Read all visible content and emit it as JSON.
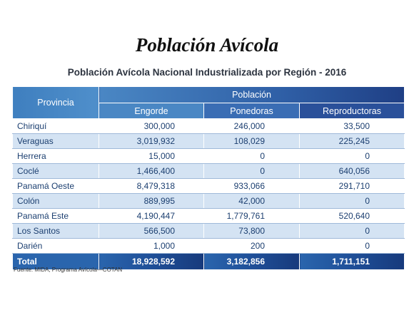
{
  "title": "Población Avícola",
  "subtitle": "Población Avícola Nacional Industrializada por Región - 2016",
  "table": {
    "header_provincia": "Provincia",
    "header_poblacion": "Población",
    "columns": [
      "Engorde",
      "Ponedoras",
      "Reproductoras"
    ],
    "rows": [
      {
        "provincia": "Chiriquí",
        "engorde": "300,000",
        "ponedoras": "246,000",
        "reproductoras": "33,500"
      },
      {
        "provincia": "Veraguas",
        "engorde": "3,019,932",
        "ponedoras": "108,029",
        "reproductoras": "225,245"
      },
      {
        "provincia": "Herrera",
        "engorde": "15,000",
        "ponedoras": "0",
        "reproductoras": "0"
      },
      {
        "provincia": "Coclé",
        "engorde": "1,466,400",
        "ponedoras": "0",
        "reproductoras": "640,056"
      },
      {
        "provincia": "Panamá Oeste",
        "engorde": "8,479,318",
        "ponedoras": "933,066",
        "reproductoras": "291,710"
      },
      {
        "provincia": "Colón",
        "engorde": "889,995",
        "ponedoras": "42,000",
        "reproductoras": "0"
      },
      {
        "provincia": "Panamá Este",
        "engorde": "4,190,447",
        "ponedoras": "1,779,761",
        "reproductoras": "520,640"
      },
      {
        "provincia": "Los Santos",
        "engorde": "566,500",
        "ponedoras": "73,800",
        "reproductoras": "0"
      },
      {
        "provincia": "Darién",
        "engorde": "1,000",
        "ponedoras": "200",
        "reproductoras": "0"
      }
    ],
    "total": {
      "label": "Total",
      "engorde": "18,928,592",
      "ponedoras": "3,182,856",
      "reproductoras": "1,711,151"
    }
  },
  "source": "Fuente: MIDA, Programa Avícola—COTAN",
  "colors": {
    "header_blue": "#3f7fbf",
    "dark_blue": "#1f3f85",
    "row_alt": "#d4e3f3",
    "text_blue": "#1c3f70"
  }
}
